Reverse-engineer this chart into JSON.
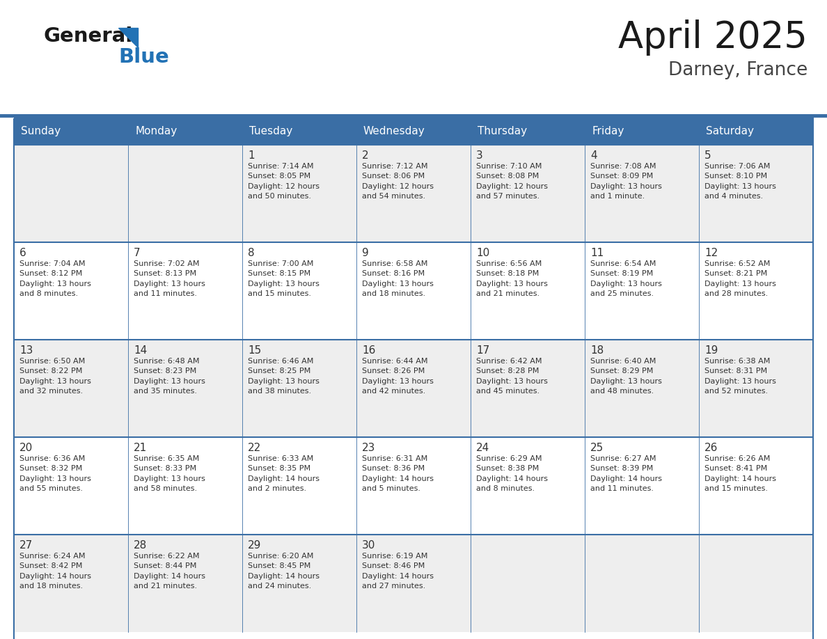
{
  "title": "April 2025",
  "subtitle": "Darney, France",
  "days_of_week": [
    "Sunday",
    "Monday",
    "Tuesday",
    "Wednesday",
    "Thursday",
    "Friday",
    "Saturday"
  ],
  "header_bg": "#3a6ea5",
  "header_text_color": "#ffffff",
  "cell_bg_odd": "#eeeeee",
  "cell_bg_even": "#ffffff",
  "text_color": "#333333",
  "border_color": "#3a6ea5",
  "title_color": "#1a1a1a",
  "subtitle_color": "#444444",
  "logo_black": "#1a1a1a",
  "logo_blue": "#2272b5",
  "weeks": [
    [
      {
        "day": null,
        "info": null
      },
      {
        "day": null,
        "info": null
      },
      {
        "day": 1,
        "info": "Sunrise: 7:14 AM\nSunset: 8:05 PM\nDaylight: 12 hours\nand 50 minutes."
      },
      {
        "day": 2,
        "info": "Sunrise: 7:12 AM\nSunset: 8:06 PM\nDaylight: 12 hours\nand 54 minutes."
      },
      {
        "day": 3,
        "info": "Sunrise: 7:10 AM\nSunset: 8:08 PM\nDaylight: 12 hours\nand 57 minutes."
      },
      {
        "day": 4,
        "info": "Sunrise: 7:08 AM\nSunset: 8:09 PM\nDaylight: 13 hours\nand 1 minute."
      },
      {
        "day": 5,
        "info": "Sunrise: 7:06 AM\nSunset: 8:10 PM\nDaylight: 13 hours\nand 4 minutes."
      }
    ],
    [
      {
        "day": 6,
        "info": "Sunrise: 7:04 AM\nSunset: 8:12 PM\nDaylight: 13 hours\nand 8 minutes."
      },
      {
        "day": 7,
        "info": "Sunrise: 7:02 AM\nSunset: 8:13 PM\nDaylight: 13 hours\nand 11 minutes."
      },
      {
        "day": 8,
        "info": "Sunrise: 7:00 AM\nSunset: 8:15 PM\nDaylight: 13 hours\nand 15 minutes."
      },
      {
        "day": 9,
        "info": "Sunrise: 6:58 AM\nSunset: 8:16 PM\nDaylight: 13 hours\nand 18 minutes."
      },
      {
        "day": 10,
        "info": "Sunrise: 6:56 AM\nSunset: 8:18 PM\nDaylight: 13 hours\nand 21 minutes."
      },
      {
        "day": 11,
        "info": "Sunrise: 6:54 AM\nSunset: 8:19 PM\nDaylight: 13 hours\nand 25 minutes."
      },
      {
        "day": 12,
        "info": "Sunrise: 6:52 AM\nSunset: 8:21 PM\nDaylight: 13 hours\nand 28 minutes."
      }
    ],
    [
      {
        "day": 13,
        "info": "Sunrise: 6:50 AM\nSunset: 8:22 PM\nDaylight: 13 hours\nand 32 minutes."
      },
      {
        "day": 14,
        "info": "Sunrise: 6:48 AM\nSunset: 8:23 PM\nDaylight: 13 hours\nand 35 minutes."
      },
      {
        "day": 15,
        "info": "Sunrise: 6:46 AM\nSunset: 8:25 PM\nDaylight: 13 hours\nand 38 minutes."
      },
      {
        "day": 16,
        "info": "Sunrise: 6:44 AM\nSunset: 8:26 PM\nDaylight: 13 hours\nand 42 minutes."
      },
      {
        "day": 17,
        "info": "Sunrise: 6:42 AM\nSunset: 8:28 PM\nDaylight: 13 hours\nand 45 minutes."
      },
      {
        "day": 18,
        "info": "Sunrise: 6:40 AM\nSunset: 8:29 PM\nDaylight: 13 hours\nand 48 minutes."
      },
      {
        "day": 19,
        "info": "Sunrise: 6:38 AM\nSunset: 8:31 PM\nDaylight: 13 hours\nand 52 minutes."
      }
    ],
    [
      {
        "day": 20,
        "info": "Sunrise: 6:36 AM\nSunset: 8:32 PM\nDaylight: 13 hours\nand 55 minutes."
      },
      {
        "day": 21,
        "info": "Sunrise: 6:35 AM\nSunset: 8:33 PM\nDaylight: 13 hours\nand 58 minutes."
      },
      {
        "day": 22,
        "info": "Sunrise: 6:33 AM\nSunset: 8:35 PM\nDaylight: 14 hours\nand 2 minutes."
      },
      {
        "day": 23,
        "info": "Sunrise: 6:31 AM\nSunset: 8:36 PM\nDaylight: 14 hours\nand 5 minutes."
      },
      {
        "day": 24,
        "info": "Sunrise: 6:29 AM\nSunset: 8:38 PM\nDaylight: 14 hours\nand 8 minutes."
      },
      {
        "day": 25,
        "info": "Sunrise: 6:27 AM\nSunset: 8:39 PM\nDaylight: 14 hours\nand 11 minutes."
      },
      {
        "day": 26,
        "info": "Sunrise: 6:26 AM\nSunset: 8:41 PM\nDaylight: 14 hours\nand 15 minutes."
      }
    ],
    [
      {
        "day": 27,
        "info": "Sunrise: 6:24 AM\nSunset: 8:42 PM\nDaylight: 14 hours\nand 18 minutes."
      },
      {
        "day": 28,
        "info": "Sunrise: 6:22 AM\nSunset: 8:44 PM\nDaylight: 14 hours\nand 21 minutes."
      },
      {
        "day": 29,
        "info": "Sunrise: 6:20 AM\nSunset: 8:45 PM\nDaylight: 14 hours\nand 24 minutes."
      },
      {
        "day": 30,
        "info": "Sunrise: 6:19 AM\nSunset: 8:46 PM\nDaylight: 14 hours\nand 27 minutes."
      },
      {
        "day": null,
        "info": null
      },
      {
        "day": null,
        "info": null
      },
      {
        "day": null,
        "info": null
      }
    ]
  ],
  "fig_width": 11.88,
  "fig_height": 9.18,
  "dpi": 100
}
